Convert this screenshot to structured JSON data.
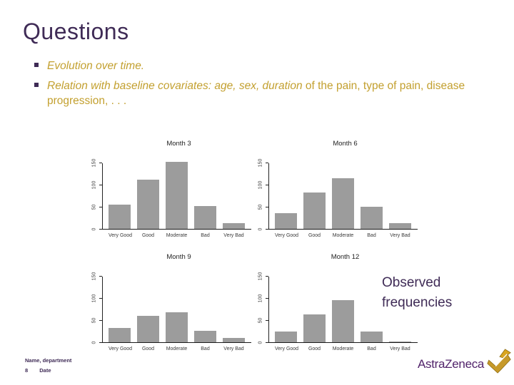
{
  "slide": {
    "title": "Questions",
    "bullets": [
      {
        "italic": "Evolution over time.",
        "regular": ""
      },
      {
        "italic": "Relation with baseline covariates: age, sex, duration",
        "regular": " of the pain, type of pain, disease progression, . . ."
      }
    ],
    "annotation": "Observed frequencies",
    "footer": {
      "name_department": "Name, department",
      "page_number": "8",
      "date_label": "Date"
    },
    "logo_text": "AstraZeneca"
  },
  "colors": {
    "title_purple": "#3F2B56",
    "bullet_gold": "#C3A02F",
    "bar_gray": "#9C9C9C",
    "logo_purple": "#52246B",
    "logo_gold": "#C79A2A"
  },
  "chart_data": [
    {
      "type": "bar",
      "title": "Month 3",
      "categories": [
        "Very Good",
        "Good",
        "Moderate",
        "Bad",
        "Very Bad"
      ],
      "values": [
        55,
        112,
        152,
        51,
        13
      ],
      "yticks": [
        0,
        50,
        100,
        150
      ],
      "ylim": [
        0,
        160
      ],
      "xlabel": "",
      "ylabel": "",
      "grid": false,
      "legend": "none",
      "bar_color": "#9C9C9C"
    },
    {
      "type": "bar",
      "title": "Month 6",
      "categories": [
        "Very Good",
        "Good",
        "Moderate",
        "Bad",
        "Very Bad"
      ],
      "values": [
        36,
        83,
        114,
        50,
        13
      ],
      "yticks": [
        0,
        50,
        100,
        150
      ],
      "ylim": [
        0,
        160
      ],
      "xlabel": "",
      "ylabel": "",
      "grid": false,
      "legend": "none",
      "bar_color": "#9C9C9C"
    },
    {
      "type": "bar",
      "title": "Month 9",
      "categories": [
        "Very Good",
        "Good",
        "Moderate",
        "Bad",
        "Very Bad"
      ],
      "values": [
        33,
        60,
        68,
        26,
        9
      ],
      "yticks": [
        0,
        50,
        100,
        150
      ],
      "ylim": [
        0,
        160
      ],
      "xlabel": "",
      "ylabel": "",
      "grid": false,
      "legend": "none",
      "bar_color": "#9C9C9C"
    },
    {
      "type": "bar",
      "title": "Month 12",
      "categories": [
        "Very Good",
        "Good",
        "Moderate",
        "Bad",
        "Very Bad"
      ],
      "values": [
        25,
        63,
        95,
        24,
        2
      ],
      "yticks": [
        0,
        50,
        100,
        150
      ],
      "ylim": [
        0,
        160
      ],
      "xlabel": "",
      "ylabel": "",
      "grid": false,
      "legend": "none",
      "bar_color": "#9C9C9C"
    }
  ]
}
